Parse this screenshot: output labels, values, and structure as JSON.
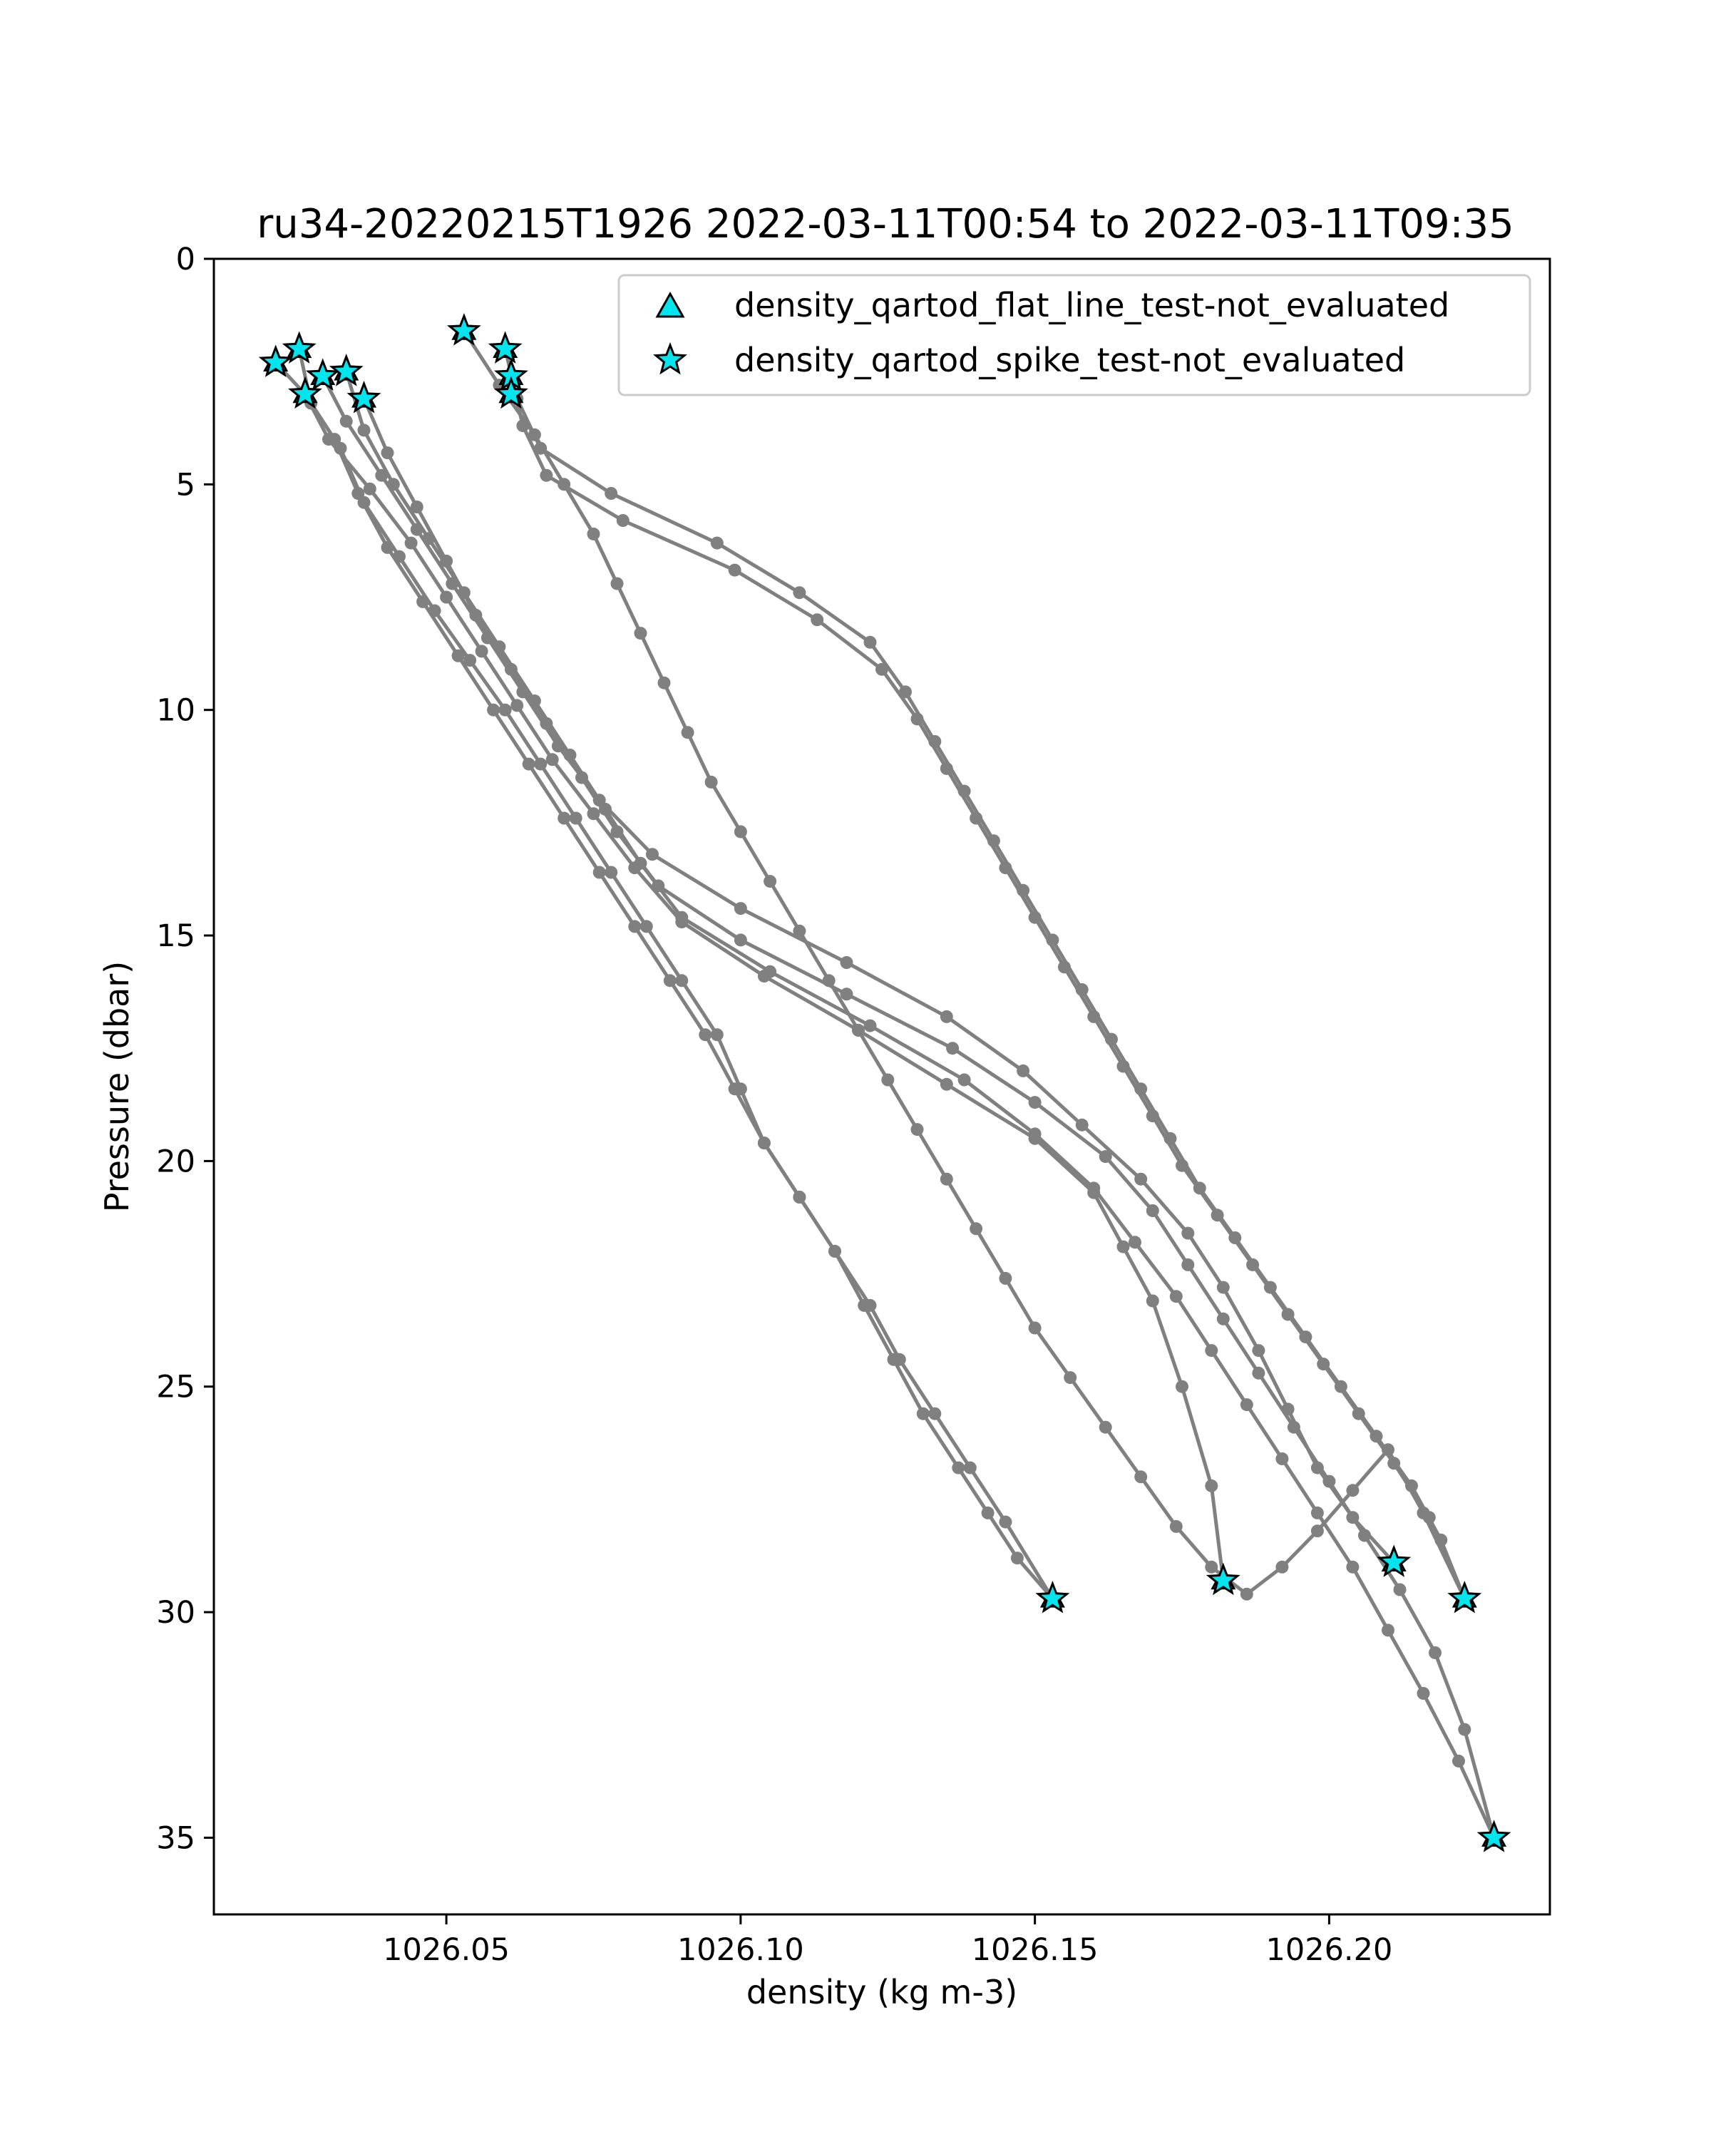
{
  "chart_data": {
    "type": "line",
    "title": "ru34-20220215T1926 2022-03-11T00:54 to 2022-03-11T09:35",
    "xlabel": "density (kg m-3)",
    "ylabel": "Pressure (dbar)",
    "xlim": [
      1026.0105,
      1026.2375
    ],
    "ylim": [
      36.7,
      0
    ],
    "y_inverted": true,
    "grid": false,
    "xticks": [
      1026.05,
      1026.1,
      1026.15,
      1026.2
    ],
    "xtick_labels": [
      "1026.05",
      "1026.10",
      "1026.15",
      "1026.20"
    ],
    "yticks": [
      0,
      5,
      10,
      15,
      20,
      25,
      30,
      35
    ],
    "ytick_labels": [
      "0",
      "5",
      "10",
      "15",
      "20",
      "25",
      "30",
      "35"
    ],
    "legend": {
      "placement": "upper right",
      "entries": [
        {
          "label": "density_qartod_flat_line_test-not_evaluated",
          "marker": "triangle"
        },
        {
          "label": "density_qartod_spike_test-not_evaluated",
          "marker": "star"
        }
      ]
    },
    "colors": {
      "profile_line": "#808080",
      "marker_fill": "#00e5ee",
      "marker_edge": "#000000"
    },
    "series": [
      {
        "x": [
          1026.025,
          1026.027,
          1026.032,
          1026.036,
          1026.042,
          1026.048,
          1026.054,
          1026.06,
          1026.066,
          1026.072,
          1026.078,
          1026.084,
          1026.09,
          1026.096,
          1026.1,
          1026.104,
          1026.11,
          1026.116,
          1026.121,
          1026.126,
          1026.131,
          1026.137,
          1026.142,
          1026.147,
          1026.153
        ],
        "y": [
          2.0,
          3.2,
          4.2,
          5.4,
          6.6,
          7.8,
          8.9,
          10.0,
          11.2,
          12.4,
          13.6,
          14.8,
          16.0,
          17.2,
          18.4,
          19.6,
          20.8,
          22.0,
          23.2,
          24.4,
          25.6,
          26.8,
          27.8,
          28.8,
          29.7
        ]
      },
      {
        "x": [
          1026.021,
          1026.026,
          1026.031,
          1026.035,
          1026.04,
          1026.046,
          1026.052,
          1026.058,
          1026.064,
          1026.07,
          1026.076,
          1026.082,
          1026.088,
          1026.094,
          1026.099,
          1026.104,
          1026.11,
          1026.116,
          1026.122,
          1026.127,
          1026.133,
          1026.139,
          1026.145,
          1026.153
        ],
        "y": [
          2.3,
          3.0,
          4.0,
          5.2,
          6.4,
          7.6,
          8.8,
          10.0,
          11.2,
          12.4,
          13.6,
          14.8,
          16.0,
          17.2,
          18.4,
          19.6,
          20.8,
          22.0,
          23.2,
          24.4,
          25.6,
          26.8,
          28.0,
          29.7
        ]
      },
      {
        "x": [
          1026.026,
          1026.03,
          1026.037,
          1026.044,
          1026.05,
          1026.056,
          1026.062,
          1026.068,
          1026.075,
          1026.082,
          1026.09,
          1026.104,
          1026.12,
          1026.135,
          1026.15,
          1026.16,
          1026.165,
          1026.17,
          1026.175,
          1026.18,
          1026.182
        ],
        "y": [
          3.0,
          4.0,
          5.1,
          6.3,
          7.5,
          8.7,
          9.9,
          11.1,
          12.3,
          13.5,
          14.7,
          15.9,
          17.1,
          18.3,
          19.5,
          20.7,
          21.9,
          23.1,
          25.0,
          27.2,
          29.3
        ]
      },
      {
        "x": [
          1026.029,
          1026.033,
          1026.039,
          1026.045,
          1026.051,
          1026.057,
          1026.063,
          1026.069,
          1026.076,
          1026.085,
          1026.1,
          1026.118,
          1026.135,
          1026.148,
          1026.158,
          1026.168,
          1026.176,
          1026.182,
          1026.188,
          1026.193,
          1026.198,
          1026.204,
          1026.211
        ],
        "y": [
          2.6,
          3.6,
          4.8,
          6.0,
          7.2,
          8.4,
          9.6,
          10.8,
          12.0,
          13.2,
          14.4,
          15.6,
          16.8,
          18.0,
          19.2,
          20.4,
          21.6,
          22.8,
          24.2,
          25.5,
          26.8,
          27.9,
          28.9
        ]
      },
      {
        "x": [
          1026.033,
          1026.036,
          1026.041,
          1026.047,
          1026.053,
          1026.059,
          1026.065,
          1026.071,
          1026.077,
          1026.083,
          1026.09,
          1026.105,
          1026.122,
          1026.138,
          1026.15,
          1026.16,
          1026.167,
          1026.174,
          1026.18,
          1026.186,
          1026.192,
          1026.198,
          1026.204,
          1026.21,
          1026.216,
          1026.222,
          1026.228
        ],
        "y": [
          2.5,
          3.8,
          5.0,
          6.2,
          7.4,
          8.6,
          9.8,
          11.0,
          12.2,
          13.4,
          14.6,
          15.8,
          17.0,
          18.2,
          19.4,
          20.6,
          21.8,
          23.0,
          24.2,
          25.4,
          26.6,
          27.8,
          29.0,
          30.4,
          31.8,
          33.3,
          35.0
        ]
      },
      {
        "x": [
          1026.036,
          1026.04,
          1026.045,
          1026.05,
          1026.055,
          1026.061,
          1026.067,
          1026.073,
          1026.079,
          1026.086,
          1026.1,
          1026.118,
          1026.136,
          1026.15,
          1026.162,
          1026.17,
          1026.176,
          1026.182,
          1026.188,
          1026.194,
          1026.2,
          1026.206,
          1026.212,
          1026.218,
          1026.223,
          1026.228
        ],
        "y": [
          3.1,
          4.3,
          5.5,
          6.7,
          7.9,
          9.1,
          10.3,
          11.5,
          12.7,
          13.9,
          15.1,
          16.3,
          17.5,
          18.7,
          19.9,
          21.1,
          22.3,
          23.5,
          24.7,
          25.9,
          27.1,
          28.3,
          29.5,
          30.9,
          32.6,
          35.0
        ]
      },
      {
        "x": [
          1026.053,
          1026.059,
          1026.065,
          1026.07,
          1026.075,
          1026.079,
          1026.083,
          1026.087,
          1026.091,
          1026.095,
          1026.1,
          1026.105,
          1026.11,
          1026.115,
          1026.12,
          1026.125,
          1026.13,
          1026.135,
          1026.14,
          1026.145,
          1026.15,
          1026.156,
          1026.162,
          1026.168,
          1026.174,
          1026.18,
          1026.186,
          1026.192,
          1026.198,
          1026.204,
          1026.21,
          1026.216,
          1026.223
        ],
        "y": [
          1.6,
          2.8,
          3.9,
          5.0,
          6.1,
          7.2,
          8.3,
          9.4,
          10.5,
          11.6,
          12.7,
          13.8,
          14.9,
          16.0,
          17.1,
          18.2,
          19.3,
          20.4,
          21.5,
          22.6,
          23.7,
          24.8,
          25.9,
          27.0,
          28.1,
          29.0,
          29.6,
          29.0,
          28.2,
          27.3,
          26.4,
          27.8,
          29.7
        ]
      },
      {
        "x": [
          1026.06,
          1026.062,
          1026.066,
          1026.078,
          1026.096,
          1026.11,
          1026.122,
          1026.128,
          1026.133,
          1026.138,
          1026.143,
          1026.148,
          1026.153,
          1026.158,
          1026.163,
          1026.168,
          1026.173,
          1026.178,
          1026.184,
          1026.19,
          1026.196,
          1026.202,
          1026.208,
          1026.214,
          1026.219,
          1026.223
        ],
        "y": [
          2.0,
          3.1,
          4.2,
          5.2,
          6.3,
          7.4,
          8.5,
          9.6,
          10.7,
          11.8,
          12.9,
          14.0,
          15.1,
          16.2,
          17.3,
          18.4,
          19.5,
          20.6,
          21.7,
          22.8,
          23.9,
          25.0,
          26.1,
          27.2,
          28.4,
          29.7
        ]
      },
      {
        "x": [
          1026.061,
          1026.063,
          1026.067,
          1026.08,
          1026.099,
          1026.113,
          1026.124,
          1026.13,
          1026.135,
          1026.14,
          1026.145,
          1026.15,
          1026.155,
          1026.16,
          1026.165,
          1026.17,
          1026.175,
          1026.181,
          1026.187,
          1026.193,
          1026.199,
          1026.205,
          1026.211,
          1026.217,
          1026.223
        ],
        "y": [
          2.6,
          3.7,
          4.8,
          5.8,
          6.9,
          8.0,
          9.1,
          10.2,
          11.3,
          12.4,
          13.5,
          14.6,
          15.7,
          16.8,
          17.9,
          19.0,
          20.1,
          21.2,
          22.3,
          23.4,
          24.5,
          25.6,
          26.7,
          27.9,
          29.7
        ]
      }
    ],
    "marker_points": [
      {
        "x": 1026.025,
        "y": 2.0
      },
      {
        "x": 1026.021,
        "y": 2.3
      },
      {
        "x": 1026.026,
        "y": 3.0
      },
      {
        "x": 1026.029,
        "y": 2.6
      },
      {
        "x": 1026.033,
        "y": 2.5
      },
      {
        "x": 1026.036,
        "y": 3.1
      },
      {
        "x": 1026.053,
        "y": 1.6
      },
      {
        "x": 1026.06,
        "y": 2.0
      },
      {
        "x": 1026.061,
        "y": 2.6
      },
      {
        "x": 1026.061,
        "y": 3.0
      },
      {
        "x": 1026.153,
        "y": 29.7
      },
      {
        "x": 1026.182,
        "y": 29.3
      },
      {
        "x": 1026.211,
        "y": 28.9
      },
      {
        "x": 1026.223,
        "y": 29.7
      },
      {
        "x": 1026.228,
        "y": 35.0
      }
    ]
  }
}
